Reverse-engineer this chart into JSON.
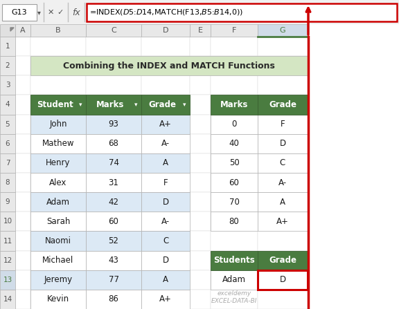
{
  "title": "Combining the INDEX and MATCH Functions",
  "formula_bar_cell": "G13",
  "formula_bar_text": "=INDEX($D$5:$D$14,MATCH(F13,$B$5:$B$14,0))",
  "col_headers": [
    "A",
    "B",
    "C",
    "D",
    "E",
    "F",
    "G"
  ],
  "row_headers": [
    "1",
    "2",
    "3",
    "4",
    "5",
    "6",
    "7",
    "8",
    "9",
    "10",
    "11",
    "12",
    "13",
    "14"
  ],
  "main_table_headers": [
    "Student",
    "Marks",
    "Grade"
  ],
  "main_table_data": [
    [
      "John",
      "93",
      "A+"
    ],
    [
      "Mathew",
      "68",
      "A-"
    ],
    [
      "Henry",
      "74",
      "A"
    ],
    [
      "Alex",
      "31",
      "F"
    ],
    [
      "Adam",
      "42",
      "D"
    ],
    [
      "Sarah",
      "60",
      "A-"
    ],
    [
      "Naomi",
      "52",
      "C"
    ],
    [
      "Michael",
      "43",
      "D"
    ],
    [
      "Jeremy",
      "77",
      "A"
    ],
    [
      "Kevin",
      "86",
      "A+"
    ]
  ],
  "lookup_table_headers": [
    "Marks",
    "Grade"
  ],
  "lookup_table_data": [
    [
      "0",
      "F"
    ],
    [
      "40",
      "D"
    ],
    [
      "50",
      "C"
    ],
    [
      "60",
      "A-"
    ],
    [
      "70",
      "A"
    ],
    [
      "80",
      "A+"
    ]
  ],
  "result_table_headers": [
    "Students",
    "Grade"
  ],
  "result_table_data": [
    [
      "Adam",
      "D"
    ]
  ],
  "header_bg": "#4a7c40",
  "header_text": "#ffffff",
  "alt_row_bg": "#dce9f5",
  "white_row_bg": "#ffffff",
  "title_bg": "#d4e6c3",
  "cell_border": "#b0b0b0",
  "grid_color": "#d0d0d0",
  "col_header_bg": "#e8e8e8",
  "col_header_selected_bg": "#d0dce8",
  "col_header_selected_bottom": "#4a7c40",
  "red_color": "#cc0000",
  "watermark_text": "exceldemy\nEXCEL-DATA-BI"
}
